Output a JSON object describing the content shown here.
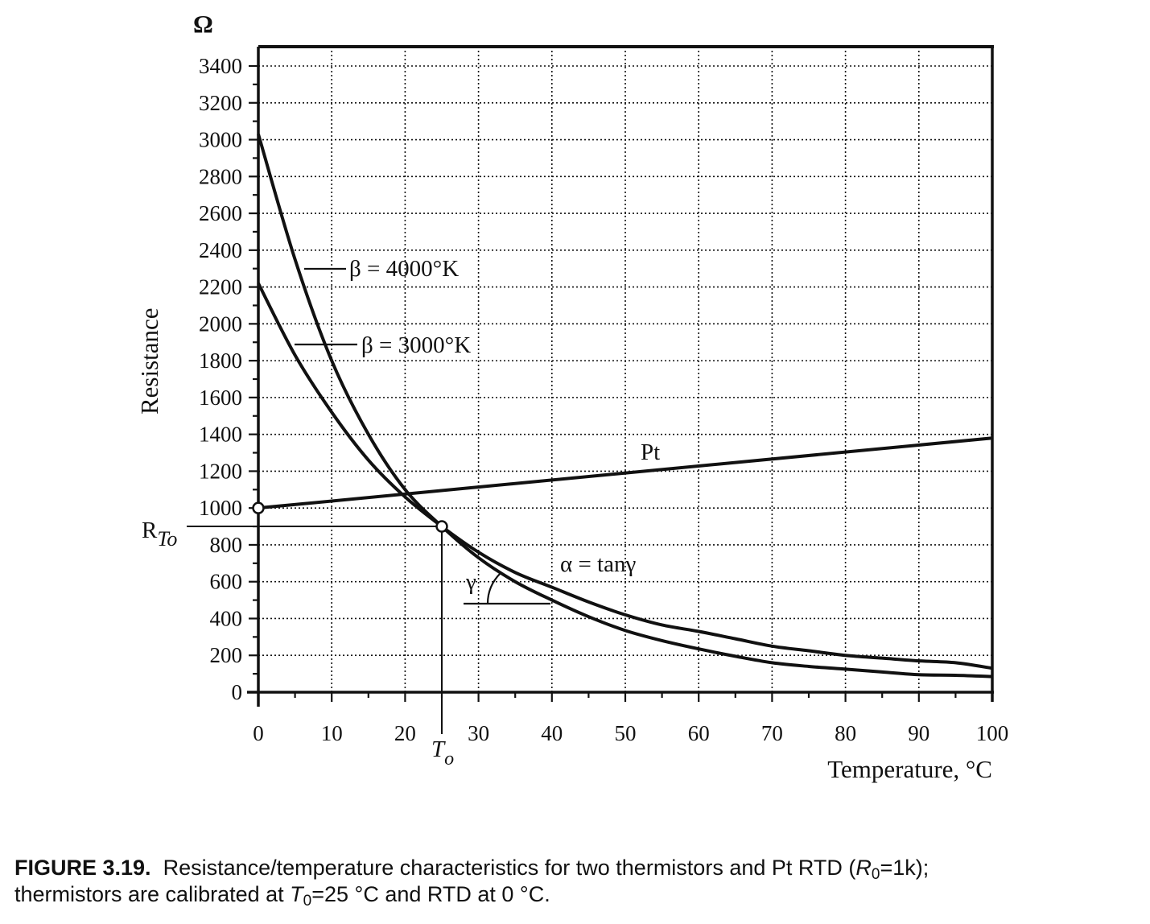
{
  "chart_data": {
    "type": "line",
    "title": "",
    "xlabel": "Temperature, °C",
    "ylabel": "Resistance",
    "yunit": "Ω",
    "xlim": [
      0,
      100
    ],
    "ylim": [
      0,
      3400
    ],
    "grid": true,
    "x_ticks": [
      0,
      10,
      20,
      30,
      40,
      50,
      60,
      70,
      80,
      90,
      100
    ],
    "x_tick_labels": [
      "0",
      "10",
      "20",
      "30",
      "40",
      "50",
      "60",
      "70",
      "80",
      "90",
      "100"
    ],
    "y_ticks": [
      0,
      200,
      400,
      600,
      800,
      1000,
      1200,
      1400,
      1600,
      1800,
      2000,
      2200,
      2400,
      2600,
      2800,
      3000,
      3200,
      3400
    ],
    "y_tick_labels": [
      "0",
      "200",
      "400",
      "600",
      "800",
      "1000",
      "1200",
      "1400",
      "1600",
      "1800",
      "2000",
      "2200",
      "2400",
      "2600",
      "2800",
      "3000",
      "3200",
      "3400"
    ],
    "series": [
      {
        "name": "β = 4000°K",
        "x": [
          0,
          5,
          10,
          15,
          20,
          25,
          30,
          35,
          40,
          45,
          50,
          55,
          60,
          65,
          70,
          75,
          80,
          85,
          90,
          95,
          100
        ],
        "values": [
          3030,
          2350,
          1800,
          1400,
          1100,
          900,
          730,
          600,
          500,
          410,
          335,
          280,
          235,
          195,
          160,
          140,
          125,
          110,
          95,
          92,
          85
        ]
      },
      {
        "name": "β = 3000°K",
        "x": [
          0,
          5,
          10,
          15,
          20,
          25,
          30,
          35,
          40,
          45,
          50,
          55,
          60,
          65,
          70,
          75,
          80,
          85,
          90,
          95,
          100
        ],
        "values": [
          2220,
          1830,
          1520,
          1260,
          1060,
          900,
          760,
          650,
          570,
          490,
          420,
          365,
          330,
          290,
          250,
          225,
          200,
          185,
          170,
          160,
          130
        ]
      },
      {
        "name": "Pt",
        "x": [
          0,
          100
        ],
        "values": [
          1000,
          1380
        ]
      }
    ],
    "annotations": {
      "beta4000_label": "β = 4000°K",
      "beta3000_label": "β = 3000°K",
      "pt_label": "Pt",
      "alpha_label": "α = tanγ",
      "gamma_label": "γ",
      "rto_label_main": "R",
      "rto_label_sub": "To",
      "to_label_main": "T",
      "to_label_sub": "o",
      "rto_value": 900,
      "to_value": 25,
      "rtd_point": [
        0,
        1000
      ],
      "calibration_point": [
        25,
        900
      ]
    }
  },
  "caption": {
    "figure_label": "FIGURE 3.19.",
    "line1_text": "Resistance/temperature characteristics for two thermistors and Pt RTD (",
    "r0_symbol": "R",
    "r0_sub": "0",
    "line1_end": "=1k);",
    "line2_start": "thermistors are calibrated at ",
    "t0_symbol": "T",
    "t0_sub": "0",
    "line2_end": "=25 °C and RTD at 0 °C."
  },
  "colors": {
    "ink": "#111111",
    "background": "#ffffff"
  }
}
